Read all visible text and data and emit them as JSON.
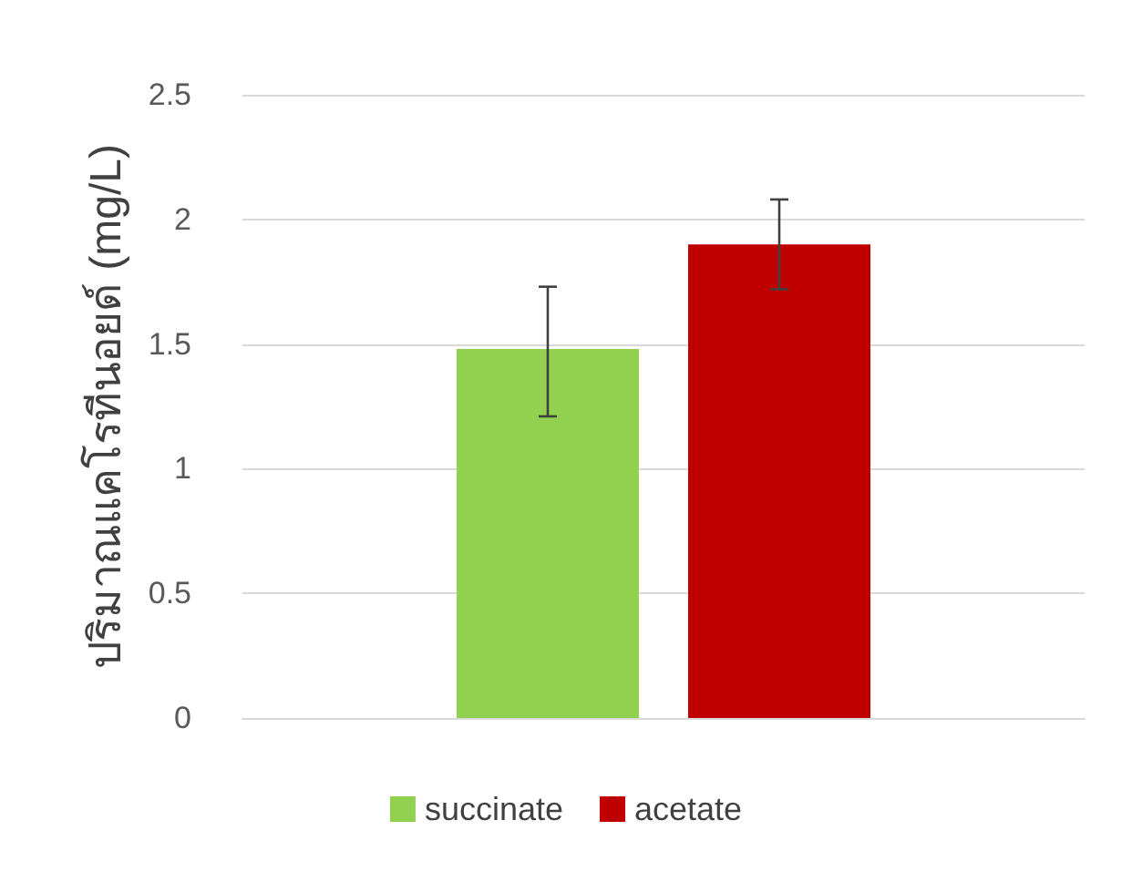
{
  "chart_data": {
    "type": "bar",
    "ylabel": "ปริมาณแคโรทีนอยด์ (mg/L)",
    "categories": [
      null
    ],
    "series": [
      {
        "name": "succinate",
        "color": "#92d050",
        "values": [
          1.48
        ],
        "errors": [
          [
            1.21,
            1.73
          ]
        ]
      },
      {
        "name": "acetate",
        "color": "#c00000",
        "values": [
          1.9
        ],
        "errors": [
          [
            1.72,
            2.08
          ]
        ]
      }
    ],
    "ylim": [
      0,
      2.5
    ],
    "yticks": [
      0,
      0.5,
      1,
      1.5,
      2,
      2.5
    ],
    "grid": "y",
    "legend": "bottom"
  }
}
